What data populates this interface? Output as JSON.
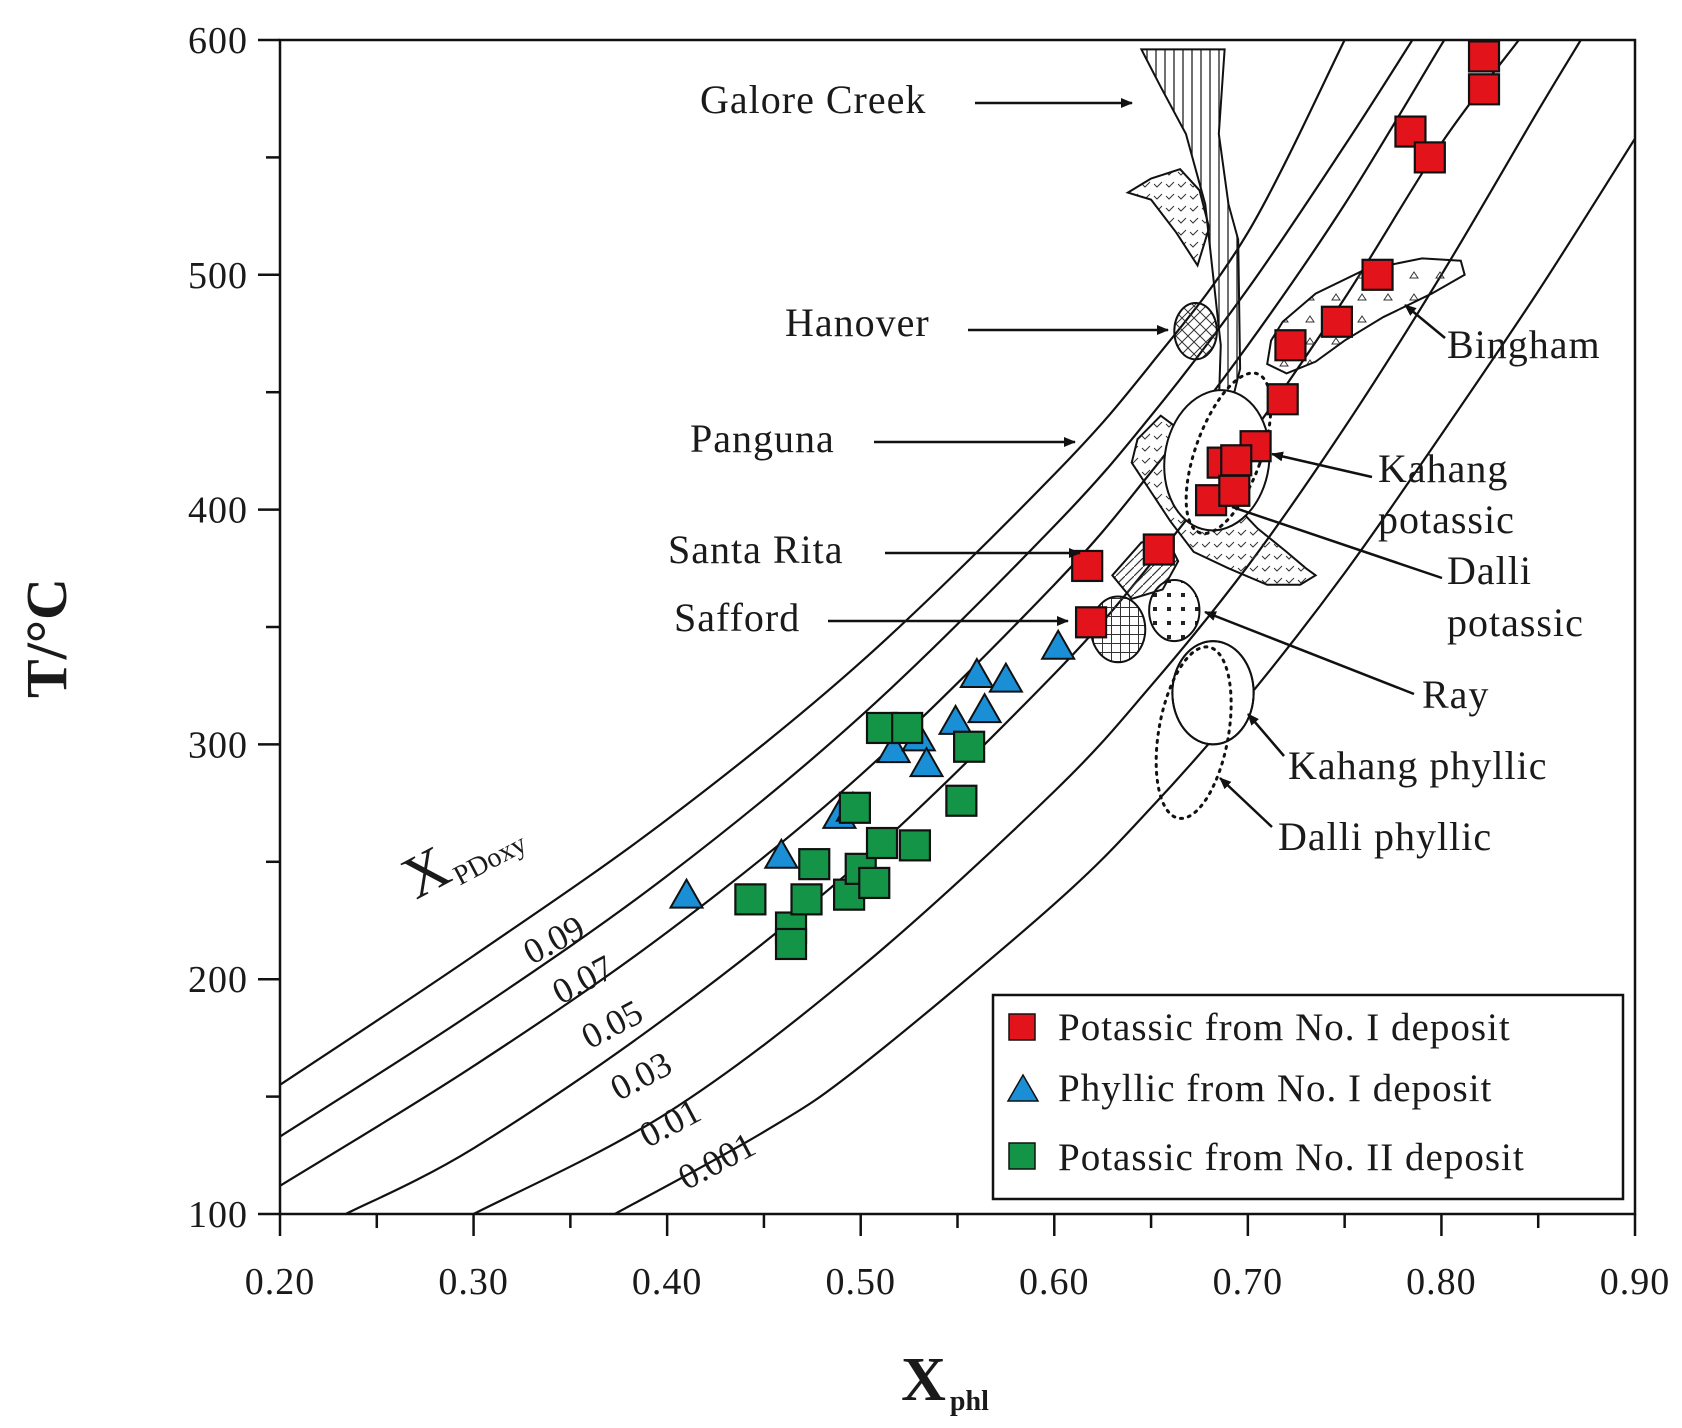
{
  "chart_data": {
    "type": "scatter",
    "title": "",
    "xlabel": "X",
    "xlabel_sub": "phl",
    "ylabel": "T/°C",
    "xlim": [
      0.2,
      0.9
    ],
    "ylim": [
      100,
      600
    ],
    "x_ticks": [
      "0.20",
      "0.30",
      "0.40",
      "0.50",
      "0.60",
      "0.70",
      "0.80",
      "0.90"
    ],
    "y_ticks": [
      "100",
      "200",
      "300",
      "400",
      "500",
      "600"
    ],
    "x_tick_values": [
      0.2,
      0.3,
      0.4,
      0.5,
      0.6,
      0.7,
      0.8,
      0.9
    ],
    "y_tick_values": [
      100,
      200,
      300,
      400,
      500,
      600
    ],
    "isopleth_title": "X",
    "isopleth_title_sub": "PDoxy",
    "isopleths": [
      {
        "label": "0.09",
        "points": [
          [
            0.2,
            155
          ],
          [
            0.3,
            210
          ],
          [
            0.4,
            268
          ],
          [
            0.5,
            335
          ],
          [
            0.6,
            415
          ],
          [
            0.65,
            462
          ],
          [
            0.7,
            518
          ],
          [
            0.75,
            600
          ]
        ]
      },
      {
        "label": "0.07",
        "points": [
          [
            0.2,
            133
          ],
          [
            0.3,
            186
          ],
          [
            0.4,
            244
          ],
          [
            0.5,
            312
          ],
          [
            0.6,
            393
          ],
          [
            0.65,
            440
          ],
          [
            0.7,
            494
          ],
          [
            0.75,
            555
          ],
          [
            0.785,
            600
          ]
        ]
      },
      {
        "label": "0.05",
        "points": [
          [
            0.2,
            112
          ],
          [
            0.3,
            163
          ],
          [
            0.4,
            220
          ],
          [
            0.5,
            287
          ],
          [
            0.6,
            368
          ],
          [
            0.65,
            416
          ],
          [
            0.7,
            470
          ],
          [
            0.75,
            530
          ],
          [
            0.8,
            598
          ],
          [
            0.802,
            600
          ]
        ]
      },
      {
        "label": "0.03",
        "points": [
          [
            0.234,
            100
          ],
          [
            0.3,
            128
          ],
          [
            0.4,
            184
          ],
          [
            0.5,
            250
          ],
          [
            0.6,
            330
          ],
          [
            0.65,
            377
          ],
          [
            0.7,
            430
          ],
          [
            0.75,
            490
          ],
          [
            0.8,
            556
          ],
          [
            0.84,
            600
          ]
        ]
      },
      {
        "label": "0.01",
        "points": [
          [
            0.3,
            100
          ],
          [
            0.4,
            143
          ],
          [
            0.5,
            205
          ],
          [
            0.6,
            280
          ],
          [
            0.65,
            325
          ],
          [
            0.7,
            376
          ],
          [
            0.75,
            435
          ],
          [
            0.8,
            500
          ],
          [
            0.85,
            570
          ],
          [
            0.872,
            600
          ]
        ]
      },
      {
        "label": "0.001",
        "points": [
          [
            0.373,
            100
          ],
          [
            0.45,
            135
          ],
          [
            0.5,
            163
          ],
          [
            0.6,
            232
          ],
          [
            0.65,
            273
          ],
          [
            0.7,
            320
          ],
          [
            0.75,
            373
          ],
          [
            0.8,
            432
          ],
          [
            0.85,
            493
          ],
          [
            0.9,
            558
          ]
        ]
      }
    ],
    "regions": [
      {
        "name": "Galore Creek"
      },
      {
        "name": "Hanover"
      },
      {
        "name": "Panguna"
      },
      {
        "name": "Santa Rita"
      },
      {
        "name": "Safford"
      },
      {
        "name": "Bingham"
      },
      {
        "name": "Kahang potassic",
        "lines": [
          "Kahang",
          "potassic"
        ]
      },
      {
        "name": "Dalli potassic",
        "lines": [
          "Dalli",
          "potassic"
        ]
      },
      {
        "name": "Ray"
      },
      {
        "name": "Kahang phyllic"
      },
      {
        "name": "Dalli phyllic"
      }
    ],
    "series": [
      {
        "name": "Potassic from No. I deposit",
        "marker": "square",
        "color": "#e3131b",
        "points": [
          [
            0.822,
            593
          ],
          [
            0.822,
            579
          ],
          [
            0.784,
            561
          ],
          [
            0.794,
            550
          ],
          [
            0.767,
            500
          ],
          [
            0.746,
            480
          ],
          [
            0.722,
            470
          ],
          [
            0.718,
            447
          ],
          [
            0.704,
            427
          ],
          [
            0.687,
            420
          ],
          [
            0.694,
            421
          ],
          [
            0.681,
            404
          ],
          [
            0.693,
            408
          ],
          [
            0.654,
            383
          ],
          [
            0.617,
            376
          ],
          [
            0.619,
            352
          ]
        ]
      },
      {
        "name": "Phyllic from No. I deposit",
        "marker": "triangle",
        "color": "#1b8fd6",
        "points": [
          [
            0.41,
            236
          ],
          [
            0.459,
            253
          ],
          [
            0.489,
            270
          ],
          [
            0.496,
            273
          ],
          [
            0.517,
            298
          ],
          [
            0.53,
            303
          ],
          [
            0.534,
            292
          ],
          [
            0.549,
            310
          ],
          [
            0.56,
            330
          ],
          [
            0.564,
            315
          ],
          [
            0.575,
            328
          ],
          [
            0.602,
            342
          ]
        ]
      },
      {
        "name": "Potassic from No. II deposit",
        "marker": "square",
        "color": "#149447",
        "points": [
          [
            0.443,
            234
          ],
          [
            0.464,
            222
          ],
          [
            0.464,
            215
          ],
          [
            0.472,
            234
          ],
          [
            0.476,
            249
          ],
          [
            0.494,
            236
          ],
          [
            0.497,
            273
          ],
          [
            0.5,
            247
          ],
          [
            0.507,
            241
          ],
          [
            0.511,
            258
          ],
          [
            0.511,
            307
          ],
          [
            0.524,
            307
          ],
          [
            0.528,
            257
          ],
          [
            0.552,
            276
          ],
          [
            0.556,
            299
          ]
        ]
      }
    ],
    "legend_position": "bottom-right"
  }
}
